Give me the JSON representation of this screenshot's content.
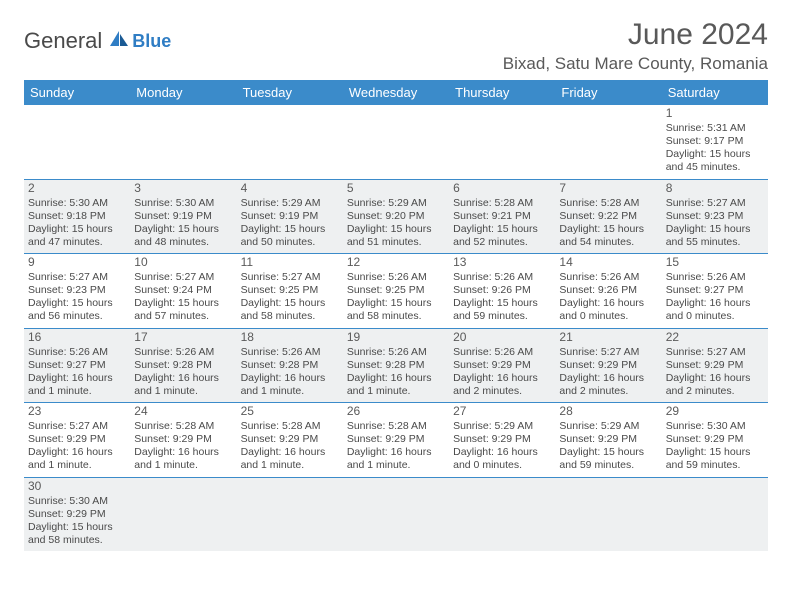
{
  "logo": {
    "main": "General",
    "sub": "Blue"
  },
  "title": "June 2024",
  "location": "Bixad, Satu Mare County, Romania",
  "colors": {
    "header_bg": "#3b8bca",
    "row_border": "#3b8bca",
    "alt_row_bg": "#eef0f1",
    "text": "#4a4a4a",
    "title_text": "#595959",
    "logo_blue": "#2f7dc4"
  },
  "day_headers": [
    "Sunday",
    "Monday",
    "Tuesday",
    "Wednesday",
    "Thursday",
    "Friday",
    "Saturday"
  ],
  "weeks": [
    [
      null,
      null,
      null,
      null,
      null,
      null,
      {
        "n": "1",
        "sr": "Sunrise: 5:31 AM",
        "ss": "Sunset: 9:17 PM",
        "dl": "Daylight: 15 hours and 45 minutes."
      }
    ],
    [
      {
        "n": "2",
        "sr": "Sunrise: 5:30 AM",
        "ss": "Sunset: 9:18 PM",
        "dl": "Daylight: 15 hours and 47 minutes."
      },
      {
        "n": "3",
        "sr": "Sunrise: 5:30 AM",
        "ss": "Sunset: 9:19 PM",
        "dl": "Daylight: 15 hours and 48 minutes."
      },
      {
        "n": "4",
        "sr": "Sunrise: 5:29 AM",
        "ss": "Sunset: 9:19 PM",
        "dl": "Daylight: 15 hours and 50 minutes."
      },
      {
        "n": "5",
        "sr": "Sunrise: 5:29 AM",
        "ss": "Sunset: 9:20 PM",
        "dl": "Daylight: 15 hours and 51 minutes."
      },
      {
        "n": "6",
        "sr": "Sunrise: 5:28 AM",
        "ss": "Sunset: 9:21 PM",
        "dl": "Daylight: 15 hours and 52 minutes."
      },
      {
        "n": "7",
        "sr": "Sunrise: 5:28 AM",
        "ss": "Sunset: 9:22 PM",
        "dl": "Daylight: 15 hours and 54 minutes."
      },
      {
        "n": "8",
        "sr": "Sunrise: 5:27 AM",
        "ss": "Sunset: 9:23 PM",
        "dl": "Daylight: 15 hours and 55 minutes."
      }
    ],
    [
      {
        "n": "9",
        "sr": "Sunrise: 5:27 AM",
        "ss": "Sunset: 9:23 PM",
        "dl": "Daylight: 15 hours and 56 minutes."
      },
      {
        "n": "10",
        "sr": "Sunrise: 5:27 AM",
        "ss": "Sunset: 9:24 PM",
        "dl": "Daylight: 15 hours and 57 minutes."
      },
      {
        "n": "11",
        "sr": "Sunrise: 5:27 AM",
        "ss": "Sunset: 9:25 PM",
        "dl": "Daylight: 15 hours and 58 minutes."
      },
      {
        "n": "12",
        "sr": "Sunrise: 5:26 AM",
        "ss": "Sunset: 9:25 PM",
        "dl": "Daylight: 15 hours and 58 minutes."
      },
      {
        "n": "13",
        "sr": "Sunrise: 5:26 AM",
        "ss": "Sunset: 9:26 PM",
        "dl": "Daylight: 15 hours and 59 minutes."
      },
      {
        "n": "14",
        "sr": "Sunrise: 5:26 AM",
        "ss": "Sunset: 9:26 PM",
        "dl": "Daylight: 16 hours and 0 minutes."
      },
      {
        "n": "15",
        "sr": "Sunrise: 5:26 AM",
        "ss": "Sunset: 9:27 PM",
        "dl": "Daylight: 16 hours and 0 minutes."
      }
    ],
    [
      {
        "n": "16",
        "sr": "Sunrise: 5:26 AM",
        "ss": "Sunset: 9:27 PM",
        "dl": "Daylight: 16 hours and 1 minute."
      },
      {
        "n": "17",
        "sr": "Sunrise: 5:26 AM",
        "ss": "Sunset: 9:28 PM",
        "dl": "Daylight: 16 hours and 1 minute."
      },
      {
        "n": "18",
        "sr": "Sunrise: 5:26 AM",
        "ss": "Sunset: 9:28 PM",
        "dl": "Daylight: 16 hours and 1 minute."
      },
      {
        "n": "19",
        "sr": "Sunrise: 5:26 AM",
        "ss": "Sunset: 9:28 PM",
        "dl": "Daylight: 16 hours and 1 minute."
      },
      {
        "n": "20",
        "sr": "Sunrise: 5:26 AM",
        "ss": "Sunset: 9:29 PM",
        "dl": "Daylight: 16 hours and 2 minutes."
      },
      {
        "n": "21",
        "sr": "Sunrise: 5:27 AM",
        "ss": "Sunset: 9:29 PM",
        "dl": "Daylight: 16 hours and 2 minutes."
      },
      {
        "n": "22",
        "sr": "Sunrise: 5:27 AM",
        "ss": "Sunset: 9:29 PM",
        "dl": "Daylight: 16 hours and 2 minutes."
      }
    ],
    [
      {
        "n": "23",
        "sr": "Sunrise: 5:27 AM",
        "ss": "Sunset: 9:29 PM",
        "dl": "Daylight: 16 hours and 1 minute."
      },
      {
        "n": "24",
        "sr": "Sunrise: 5:28 AM",
        "ss": "Sunset: 9:29 PM",
        "dl": "Daylight: 16 hours and 1 minute."
      },
      {
        "n": "25",
        "sr": "Sunrise: 5:28 AM",
        "ss": "Sunset: 9:29 PM",
        "dl": "Daylight: 16 hours and 1 minute."
      },
      {
        "n": "26",
        "sr": "Sunrise: 5:28 AM",
        "ss": "Sunset: 9:29 PM",
        "dl": "Daylight: 16 hours and 1 minute."
      },
      {
        "n": "27",
        "sr": "Sunrise: 5:29 AM",
        "ss": "Sunset: 9:29 PM",
        "dl": "Daylight: 16 hours and 0 minutes."
      },
      {
        "n": "28",
        "sr": "Sunrise: 5:29 AM",
        "ss": "Sunset: 9:29 PM",
        "dl": "Daylight: 15 hours and 59 minutes."
      },
      {
        "n": "29",
        "sr": "Sunrise: 5:30 AM",
        "ss": "Sunset: 9:29 PM",
        "dl": "Daylight: 15 hours and 59 minutes."
      }
    ],
    [
      {
        "n": "30",
        "sr": "Sunrise: 5:30 AM",
        "ss": "Sunset: 9:29 PM",
        "dl": "Daylight: 15 hours and 58 minutes."
      },
      null,
      null,
      null,
      null,
      null,
      null
    ]
  ]
}
